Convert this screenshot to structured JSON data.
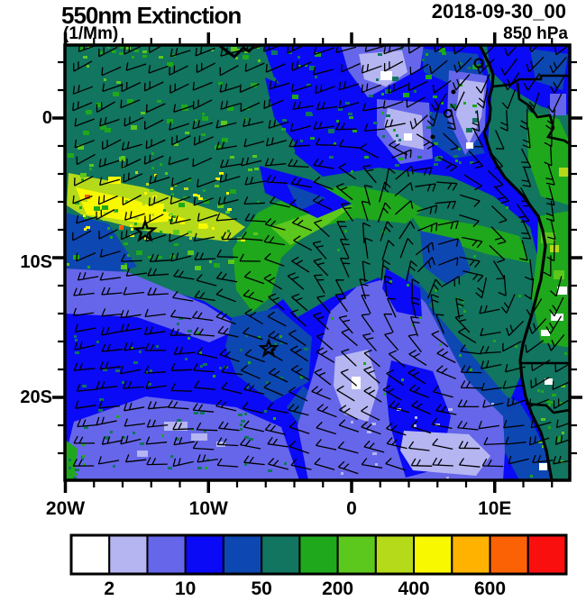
{
  "title": "550nm Extinction",
  "units_label": "(1/Mm)",
  "valid_time": "2018-09-30_00",
  "level_label": "850 hPa",
  "axes": {
    "x_tick_labels": [
      "20W",
      "10W",
      "0",
      "10E"
    ],
    "y_tick_labels": [
      "0",
      "10S",
      "20S"
    ]
  },
  "colorbar": {
    "tick_labels": [
      "2",
      "10",
      "50",
      "200",
      "400",
      "600"
    ],
    "cell_colors": [
      "#FFFFFF",
      "#B5B5F2",
      "#6666EA",
      "#0A0AF6",
      "#0D47B2",
      "#11755F",
      "#1FA81C",
      "#5CC71D",
      "#B4DA1A",
      "#F8F800",
      "#FFB300",
      "#FB6205",
      "#FA0F0F"
    ]
  },
  "markers": {
    "star_count": 2
  },
  "chart_data": {
    "type": "heatmap",
    "title": "550nm Extinction",
    "units": "1/Mm",
    "valid_time": "2018-09-30_00",
    "level": "850 hPa",
    "projection": "cylindrical lat-lon map of the southeast Atlantic and west-central Africa",
    "lon_range_deg": [
      -20,
      15.2
    ],
    "lat_range_deg": [
      5.2,
      -25.9
    ],
    "x_tick_labels": [
      "20W",
      "10W",
      "0",
      "10E"
    ],
    "y_tick_labels": [
      "0",
      "10S",
      "20S"
    ],
    "colorbar_labeled_levels": [
      2,
      10,
      50,
      200,
      400,
      600
    ],
    "colorbar_colors": [
      "#FFFFFF",
      "#B5B5F2",
      "#6666EA",
      "#0A0AF6",
      "#0D47B2",
      "#11755F",
      "#1FA81C",
      "#5CC71D",
      "#B4DA1A",
      "#F8F800",
      "#FFB300",
      "#FB6205",
      "#FA0F0F"
    ],
    "legend_position": "bottom horizontal label bar",
    "grid": false,
    "overlays": [
      "wind barbs at 850 hPa",
      "coastline of west-central Africa (Gulf of Guinea to Namibia)",
      "country borders",
      "two open star markers"
    ],
    "star_markers_lonlat": [
      {
        "lon": -14.4,
        "lat": -8.1
      },
      {
        "lon": -5.8,
        "lat": -16.5
      }
    ],
    "features": [
      {
        "region": "northwest quadrant 20W-5W, 2N-7S",
        "value_1_per_Mm": "200-700 biomass-smoke plume (green/yellow-green/yellow with tiny orange spots)"
      },
      {
        "region": "equatorial Gulf of Guinea 5W-10E near 0-2N",
        "value_1_per_Mm": "2-25 minimum (white/lavender/periwinkle patches)"
      },
      {
        "region": "central arc 10W-12E, 5S-15S",
        "value_1_per_Mm": "100-300 green arc hooking toward the Angolan coast"
      },
      {
        "region": "anticyclonic eddy near 9E, 13S",
        "value_1_per_Mm": "50-100 dark teal with swirling wind barbs"
      },
      {
        "region": "southeast Atlantic 15S-26S",
        "value_1_per_Mm": "5-25 (blue/periwinkle, patches of 2-10)"
      },
      {
        "region": "Angola coastal land strip 12E-15E, 7S-17S",
        "value_1_per_Mm": "200-400 (bright green, small white gaps)"
      }
    ]
  }
}
